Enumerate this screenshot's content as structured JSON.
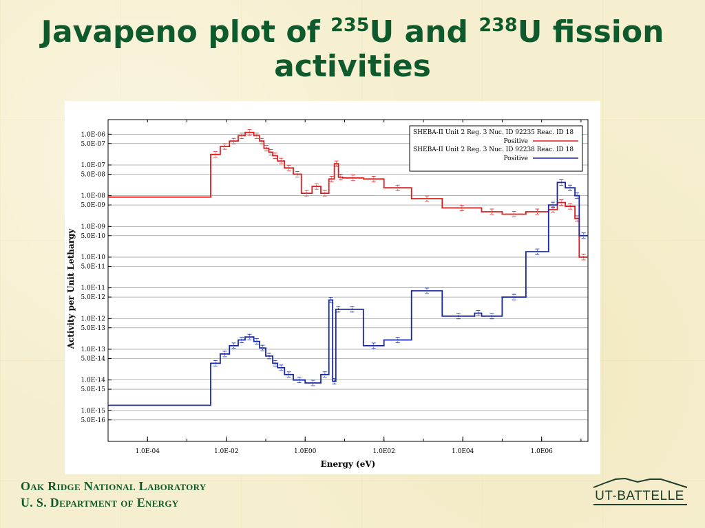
{
  "slide": {
    "title_part1": "Javapeno plot of ",
    "sup1": "235",
    "title_part2": "U and ",
    "sup2": "238",
    "title_part3": "U fission activities"
  },
  "footer": {
    "line1": "Oak Ridge National Laboratory",
    "line2": "U. S. Department of Energy",
    "logo_text": "UT-BATTELLE"
  },
  "colors": {
    "title_green": "#0f5a2c",
    "u235_red": "#e11b1b",
    "u238_blue": "#1626a8"
  },
  "chart_data": {
    "type": "line",
    "step": true,
    "xlabel": "Energy (eV)",
    "ylabel": "Activity per Unit Lethargy",
    "xscale": "log",
    "yscale": "log",
    "xlim": [
      1e-05,
      15000000
    ],
    "ylim": [
      1e-16,
      3e-06
    ],
    "xticks": [
      0.0001,
      0.01,
      1,
      100,
      10000,
      1000000
    ],
    "xtick_labels": [
      "1.0E-04",
      "1.0E-02",
      "1.0E00",
      "1.0E02",
      "1.0E04",
      "1.0E06"
    ],
    "yticks": [
      1e-06,
      5e-07,
      1e-07,
      5e-08,
      1e-08,
      5e-09,
      1e-09,
      5e-10,
      1e-10,
      5e-11,
      1e-11,
      5e-12,
      1e-12,
      5e-13,
      1e-13,
      5e-14,
      1e-14,
      5e-15,
      1e-15,
      5e-16
    ],
    "ytick_labels": [
      "1.0E-06",
      "5.0E-07",
      "1.0E-07",
      "5.0E-08",
      "1.0E-08",
      "5.0E-09",
      "1.0E-09",
      "5.0E-10",
      "1.0E-10",
      "5.0E-11",
      "1.0E-11",
      "5.0E-12",
      "1.0E-12",
      "5.0E-13",
      "1.0E-13",
      "5.0E-14",
      "1.0E-14",
      "5.0E-15",
      "1.0E-15",
      "5.0E-16"
    ],
    "grid": true,
    "legend_position": "top-right",
    "series": [
      {
        "name": "SHEBA-II Unit 2 Reg. 3 Nuc. ID 92235 Reac. ID 18",
        "name_line2": "Positive",
        "color": "#e11b1b",
        "x": [
          1e-05,
          0.004,
          0.007,
          0.012,
          0.02,
          0.03,
          0.05,
          0.07,
          0.09,
          0.12,
          0.15,
          0.2,
          0.3,
          0.5,
          0.8,
          1.5,
          2.5,
          4,
          5.5,
          7,
          9,
          30,
          100,
          500,
          3000,
          30000,
          100000,
          400000,
          1500000,
          2500000,
          4000000,
          7000000,
          9000000,
          15000000
        ],
        "y": [
          9e-09,
          2.2e-07,
          4e-07,
          6e-07,
          9e-07,
          1.15e-06,
          9e-07,
          6e-07,
          3.5e-07,
          2.6e-07,
          2e-07,
          1.35e-07,
          8e-08,
          5e-08,
          1.2e-08,
          2e-08,
          1.2e-08,
          3.5e-08,
          1.1e-07,
          4e-08,
          3.8e-08,
          3.5e-08,
          1.8e-08,
          8e-09,
          4e-09,
          3e-09,
          2.5e-09,
          3e-09,
          3.5e-09,
          6e-09,
          4.5e-09,
          1.8e-09,
          1e-10,
          1e-10
        ]
      },
      {
        "name": "SHEBA-II Unit 2 Reg. 3 Nuc. ID 92238 Reac. ID 18",
        "name_line2": "Positive",
        "color": "#1626a8",
        "x": [
          1e-05,
          0.004,
          0.007,
          0.012,
          0.02,
          0.03,
          0.05,
          0.07,
          0.1,
          0.15,
          0.2,
          0.3,
          0.5,
          1,
          2.5,
          4,
          5,
          6,
          8,
          30,
          100,
          500,
          3000,
          20000,
          30000,
          100000,
          400000,
          1500000,
          2500000,
          4000000,
          7000000,
          9000000,
          15000000
        ],
        "y": [
          1.5e-15,
          3.5e-14,
          7e-14,
          1.3e-13,
          2e-13,
          2.5e-13,
          1.8e-13,
          1.1e-13,
          6e-14,
          3.5e-14,
          2.5e-14,
          1.5e-14,
          1e-14,
          8e-15,
          1.5e-14,
          4e-12,
          9e-15,
          2e-12,
          2e-12,
          1.3e-13,
          2e-13,
          8e-12,
          1.2e-12,
          1.5e-12,
          1.2e-12,
          5e-12,
          1.5e-10,
          5e-09,
          2.7e-08,
          1.8e-08,
          1e-08,
          5e-10,
          5e-10
        ]
      }
    ]
  }
}
